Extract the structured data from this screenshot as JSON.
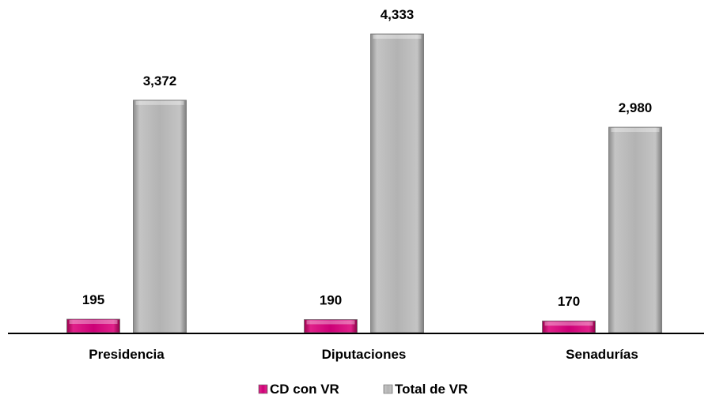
{
  "chart_data": {
    "type": "bar",
    "title": "",
    "xlabel": "",
    "ylabel": "",
    "categories": [
      "Presidencia",
      "Diputaciones",
      "Senadurías"
    ],
    "series": [
      {
        "name": "CD con VR",
        "values": [
          195,
          190,
          170
        ],
        "labels": [
          "195",
          "190",
          "170"
        ],
        "color": "#cc0077"
      },
      {
        "name": "Total de VR",
        "values": [
          3372,
          4333,
          2980
        ],
        "labels": [
          "3,372",
          "4,333",
          "2,980"
        ],
        "color": "#b0b0b0"
      }
    ],
    "ylim": [
      0,
      4333
    ],
    "grid": false,
    "legend": "bottom"
  }
}
